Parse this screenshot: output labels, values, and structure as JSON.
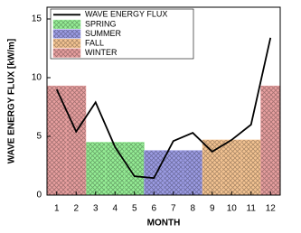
{
  "chart_data": {
    "type": "combo",
    "xlabel": "MONTH",
    "ylabel": "WAVE ENERGY FLUX [kW/m]",
    "x": [
      1,
      2,
      3,
      4,
      5,
      6,
      7,
      8,
      9,
      10,
      11,
      12
    ],
    "xlim": [
      0.5,
      12.5
    ],
    "xticks": [
      1,
      2,
      3,
      4,
      5,
      6,
      7,
      8,
      9,
      10,
      11,
      12
    ],
    "ylim": [
      0,
      16
    ],
    "yticks": [
      0,
      5,
      10,
      15
    ],
    "legend": "upper left",
    "series": [
      {
        "name": "WAVE ENERGY FLUX",
        "type": "line",
        "color": "#000000",
        "values": [
          9.0,
          5.4,
          7.9,
          4.1,
          1.6,
          1.45,
          4.6,
          5.3,
          3.7,
          4.7,
          6.0,
          13.4
        ]
      },
      {
        "name": "SPRING",
        "type": "bar",
        "color": "#96ee96",
        "values": [
          null,
          null,
          4.5,
          4.5,
          4.5,
          null,
          null,
          null,
          null,
          null,
          null,
          null
        ]
      },
      {
        "name": "SUMMER",
        "type": "bar",
        "color": "#9c9ce4",
        "values": [
          null,
          null,
          null,
          null,
          null,
          3.8,
          3.8,
          3.8,
          null,
          null,
          null,
          null
        ]
      },
      {
        "name": "FALL",
        "type": "bar",
        "color": "#f4c493",
        "values": [
          null,
          null,
          null,
          null,
          null,
          null,
          null,
          null,
          4.7,
          4.7,
          4.7,
          null
        ]
      },
      {
        "name": "WINTER",
        "type": "bar",
        "color": "#e8a0a0",
        "values": [
          9.3,
          9.3,
          null,
          null,
          null,
          null,
          null,
          null,
          null,
          null,
          null,
          9.3
        ]
      }
    ]
  }
}
